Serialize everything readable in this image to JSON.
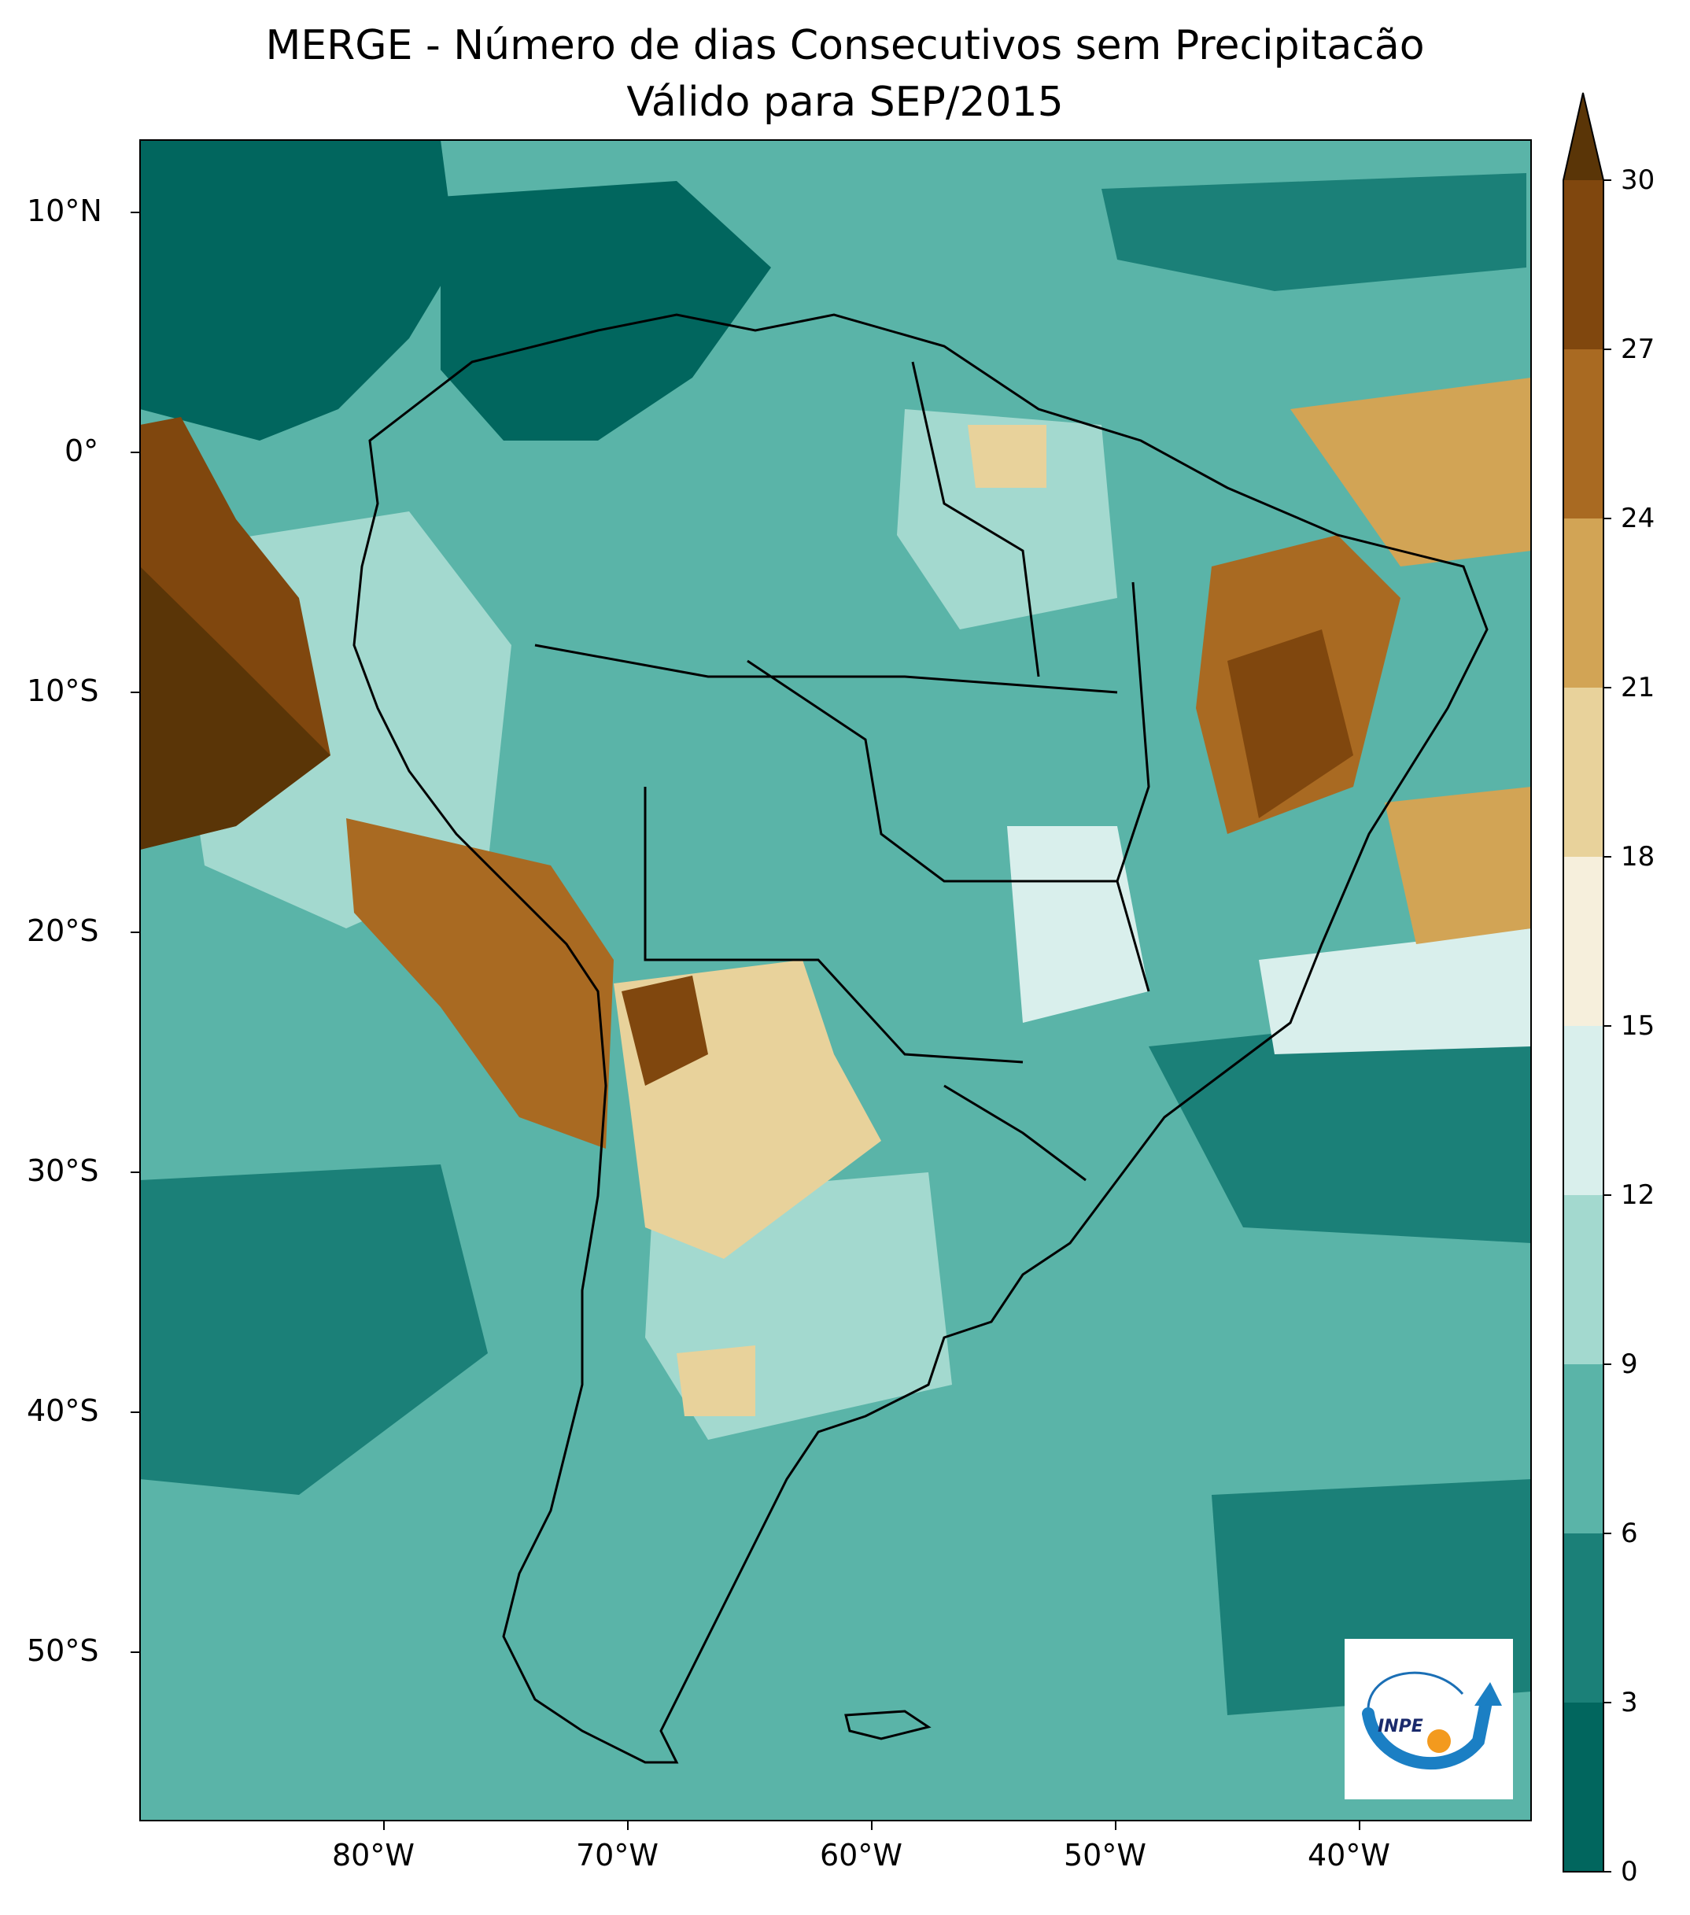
{
  "title": {
    "line1": "MERGE - Número de dias Consecutivos sem Precipitacão",
    "line2": "Válido para SEP/2015"
  },
  "lat_labels": [
    "10°N",
    "0°",
    "10°S",
    "20°S",
    "30°S",
    "40°S",
    "50°S"
  ],
  "lon_labels": [
    "80°W",
    "70°W",
    "60°W",
    "50°W",
    "40°W"
  ],
  "colorbar": {
    "ticks": [
      "0",
      "3",
      "6",
      "9",
      "12",
      "15",
      "18",
      "21",
      "24",
      "27",
      "30"
    ],
    "extend": "max",
    "colors": [
      "#01665e",
      "#1b8078",
      "#5ab4a8",
      "#a3d9cf",
      "#d9efec",
      "#f6efdc",
      "#e8d29b",
      "#d2a455",
      "#a96a22",
      "#80470e",
      "#5a3507"
    ]
  },
  "logo": {
    "text": "INPE"
  }
}
